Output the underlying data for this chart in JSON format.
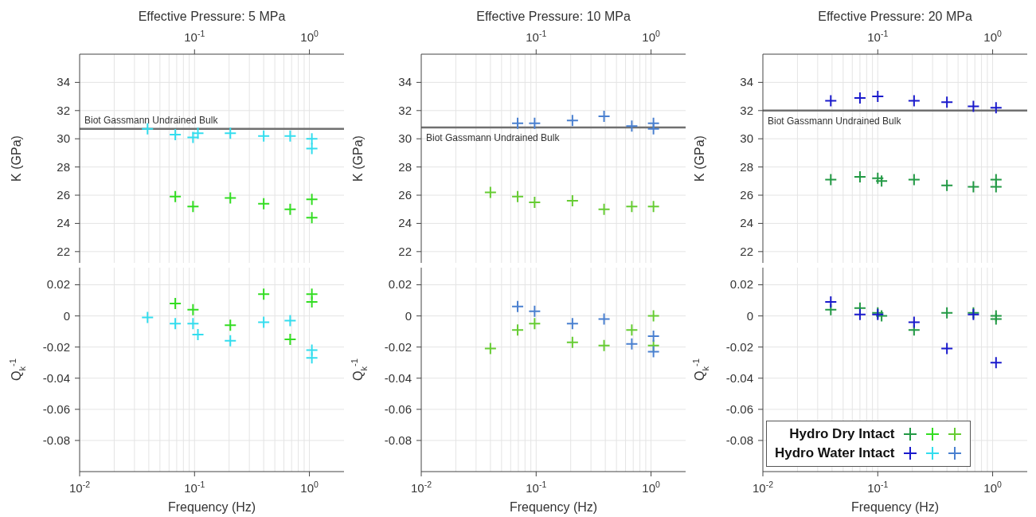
{
  "chart_data": [
    {
      "type": "scatter",
      "title": "Effective Pressure: 5 MPa",
      "ylabel": "K (GPa)",
      "xlim": [
        0.01,
        2
      ],
      "xticks": [
        {
          "value": 0.1,
          "label": "10$^{-1}$"
        },
        {
          "value": 1,
          "label": "10$^{0}$"
        }
      ],
      "log": "x",
      "ylim": [
        21.2,
        36
      ],
      "yticks": [
        22,
        24,
        26,
        28,
        30,
        32,
        34
      ],
      "grid": true,
      "marker": "cross",
      "ref_lines": [
        {
          "axis": "y",
          "value": 30.7,
          "label": "Biot Gassmann Undrained Bulk",
          "color": "#707070"
        }
      ],
      "series": [
        {
          "color": "#33dd22",
          "x": [
            0.068,
            0.097,
            0.205,
            0.4,
            0.68,
            1.05,
            1.05
          ],
          "values": [
            25.9,
            25.2,
            25.8,
            25.4,
            25.0,
            25.7,
            24.4
          ]
        },
        {
          "color": "#33ddee",
          "x": [
            0.039,
            0.068,
            0.097,
            0.107,
            0.205,
            0.4,
            0.68,
            1.05,
            1.05
          ],
          "values": [
            30.7,
            30.3,
            30.1,
            30.4,
            30.4,
            30.2,
            30.2,
            30.0,
            29.3
          ]
        }
      ]
    },
    {
      "type": "scatter",
      "title": "Effective Pressure: 10 MPa",
      "ylabel": "K (GPa)",
      "xlim": [
        0.01,
        2
      ],
      "xticks": [
        {
          "value": 0.1,
          "label": "10$^{-1}$"
        },
        {
          "value": 1,
          "label": "10$^{0}$"
        }
      ],
      "log": "x",
      "ylim": [
        21.2,
        36
      ],
      "yticks": [
        22,
        24,
        26,
        28,
        30,
        32,
        34
      ],
      "grid": true,
      "marker": "cross",
      "ref_lines": [
        {
          "axis": "y",
          "value": 30.8,
          "label": "Biot Gassmann Undrained Bulk",
          "color": "#707070"
        }
      ],
      "series": [
        {
          "color": "#66cc33",
          "x": [
            0.04,
            0.069,
            0.097,
            0.207,
            0.39,
            0.68,
            1.05
          ],
          "values": [
            26.2,
            25.9,
            25.5,
            25.6,
            25.0,
            25.2,
            25.2
          ]
        },
        {
          "color": "#4a80d0",
          "x": [
            0.069,
            0.097,
            0.207,
            0.39,
            0.68,
            1.05,
            1.05
          ],
          "values": [
            31.1,
            31.1,
            31.3,
            31.6,
            30.9,
            31.1,
            30.7
          ]
        }
      ]
    },
    {
      "type": "scatter",
      "title": "Effective Pressure: 20 MPa",
      "ylabel": "K (GPa)",
      "xlim": [
        0.01,
        2
      ],
      "xticks": [
        {
          "value": 0.1,
          "label": "10$^{-1}$"
        },
        {
          "value": 1,
          "label": "10$^{0}$"
        }
      ],
      "log": "x",
      "ylim": [
        21.2,
        36
      ],
      "yticks": [
        22,
        24,
        26,
        28,
        30,
        32,
        34
      ],
      "grid": true,
      "marker": "cross",
      "ref_lines": [
        {
          "axis": "y",
          "value": 32.0,
          "label": "Biot Gassmann Undrained Bulk",
          "color": "#707070"
        }
      ],
      "series": [
        {
          "color": "#229944",
          "x": [
            0.039,
            0.07,
            0.1,
            0.108,
            0.207,
            0.4,
            0.68,
            1.07,
            1.07
          ],
          "values": [
            27.1,
            27.3,
            27.2,
            27.0,
            27.1,
            26.7,
            26.6,
            27.1,
            26.6
          ]
        },
        {
          "color": "#1a1acc",
          "x": [
            0.039,
            0.07,
            0.1,
            0.207,
            0.4,
            0.68,
            1.07
          ],
          "values": [
            32.7,
            32.9,
            33.0,
            32.7,
            32.6,
            32.3,
            32.2
          ]
        }
      ]
    },
    {
      "type": "scatter",
      "xlabel": "Frequency (Hz)",
      "ylabel": "Q$_{k}$$^{-1}$",
      "xlim": [
        0.01,
        2
      ],
      "xticks": [
        {
          "value": 0.01,
          "label": "10$^{-2}$"
        },
        {
          "value": 0.1,
          "label": "10$^{-1}$"
        },
        {
          "value": 1,
          "label": "10$^{0}$"
        }
      ],
      "log": "x",
      "ylim": [
        -0.1,
        0.031
      ],
      "yticks": [
        -0.08,
        -0.06,
        -0.04,
        -0.02,
        0,
        0.02
      ],
      "grid": true,
      "marker": "cross",
      "series": [
        {
          "color": "#33dd22",
          "x": [
            0.068,
            0.097,
            0.205,
            0.4,
            0.68,
            1.05,
            1.05
          ],
          "values": [
            0.008,
            0.004,
            -0.006,
            0.014,
            -0.015,
            0.014,
            0.009
          ]
        },
        {
          "color": "#33ddee",
          "x": [
            0.039,
            0.068,
            0.097,
            0.107,
            0.205,
            0.4,
            0.68,
            1.05,
            1.05
          ],
          "values": [
            -0.001,
            -0.005,
            -0.005,
            -0.012,
            -0.016,
            -0.004,
            -0.003,
            -0.022,
            -0.027
          ]
        }
      ]
    },
    {
      "type": "scatter",
      "xlabel": "Frequency (Hz)",
      "ylabel": "Q$_{k}$$^{-1}$",
      "xlim": [
        0.01,
        2
      ],
      "xticks": [
        {
          "value": 0.01,
          "label": "10$^{-2}$"
        },
        {
          "value": 0.1,
          "label": "10$^{-1}$"
        },
        {
          "value": 1,
          "label": "10$^{0}$"
        }
      ],
      "log": "x",
      "ylim": [
        -0.1,
        0.031
      ],
      "yticks": [
        -0.08,
        -0.06,
        -0.04,
        -0.02,
        0,
        0.02
      ],
      "grid": true,
      "marker": "cross",
      "series": [
        {
          "color": "#66cc33",
          "x": [
            0.04,
            0.069,
            0.097,
            0.207,
            0.39,
            0.68,
            1.05,
            1.05
          ],
          "values": [
            -0.021,
            -0.009,
            -0.005,
            -0.017,
            -0.019,
            -0.009,
            0.0,
            -0.019
          ]
        },
        {
          "color": "#4a80d0",
          "x": [
            0.069,
            0.097,
            0.207,
            0.39,
            0.68,
            1.05,
            1.05
          ],
          "values": [
            0.006,
            0.003,
            -0.005,
            -0.002,
            -0.018,
            -0.013,
            -0.023
          ]
        }
      ]
    },
    {
      "type": "scatter",
      "xlabel": "Frequency (Hz)",
      "ylabel": "Q$_{k}$$^{-1}$",
      "xlim": [
        0.01,
        2
      ],
      "xticks": [
        {
          "value": 0.01,
          "label": "10$^{-2}$"
        },
        {
          "value": 0.1,
          "label": "10$^{-1}$"
        },
        {
          "value": 1,
          "label": "10$^{0}$"
        }
      ],
      "log": "x",
      "ylim": [
        -0.1,
        0.031
      ],
      "yticks": [
        -0.08,
        -0.06,
        -0.04,
        -0.02,
        0,
        0.02
      ],
      "grid": true,
      "marker": "cross",
      "legend": "bottom left",
      "series": [
        {
          "name": "Hydro Dry Intact",
          "color": "#229944",
          "x": [
            0.039,
            0.07,
            0.1,
            0.108,
            0.207,
            0.4,
            0.68,
            1.07,
            1.07
          ],
          "values": [
            0.004,
            0.005,
            0.002,
            0.0,
            -0.009,
            0.002,
            0.002,
            0.0,
            -0.002
          ]
        },
        {
          "name": "Hydro Water Intact",
          "color": "#1a1acc",
          "x": [
            0.039,
            0.07,
            0.1,
            0.207,
            0.4,
            0.68,
            1.07
          ],
          "values": [
            0.009,
            0.001,
            0.001,
            -0.004,
            -0.021,
            0.001,
            -0.03
          ]
        }
      ]
    }
  ]
}
